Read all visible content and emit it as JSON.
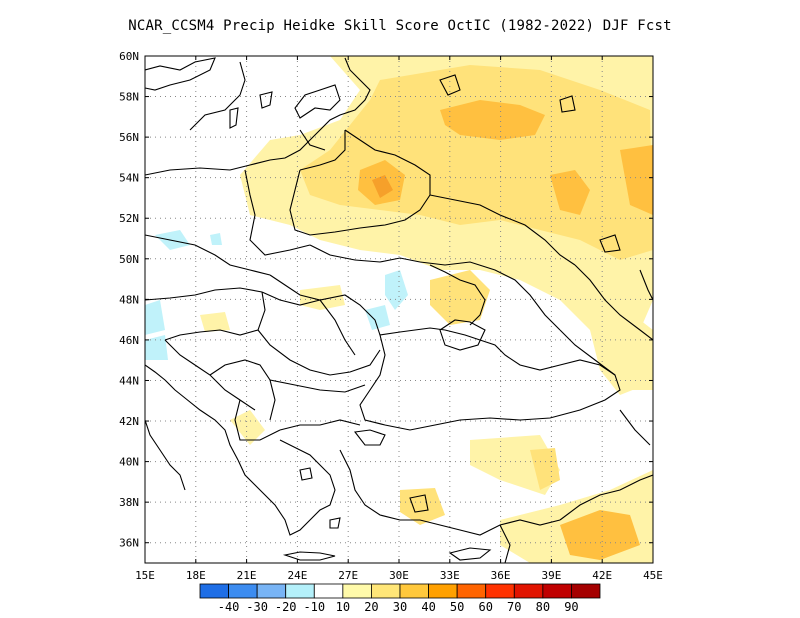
{
  "title": "NCAR_CCSM4 Precip Heidke Skill Score OctIC (1982-2022) DJF Fcst",
  "map": {
    "lon_range": [
      15,
      45
    ],
    "lat_range": [
      35,
      60
    ],
    "x_ticks": [
      "15E",
      "18E",
      "21E",
      "24E",
      "27E",
      "30E",
      "33E",
      "36E",
      "39E",
      "42E",
      "45E"
    ],
    "y_ticks": [
      "36N",
      "38N",
      "40N",
      "42N",
      "44N",
      "46N",
      "48N",
      "50N",
      "52N",
      "54N",
      "56N",
      "58N",
      "60N"
    ],
    "grid": "dotted"
  },
  "colorbar": {
    "colors": [
      "#1e6ee6",
      "#3c8cf0",
      "#78b4f5",
      "#b4f0fa",
      "#ffffff",
      "#fffaaa",
      "#ffe678",
      "#ffc83c",
      "#ffa000",
      "#ff6400",
      "#ff3200",
      "#e11400",
      "#c00000",
      "#a50000"
    ],
    "labels": [
      "-40",
      "-30",
      "-20",
      "-10",
      "10",
      "20",
      "30",
      "40",
      "50",
      "60",
      "70",
      "80",
      "90"
    ]
  },
  "legend_colors": {
    "light_yellow": "#fff3a8",
    "yellow": "#ffe27a",
    "orange": "#ffc040",
    "dark_orange": "#f6a02a",
    "light_blue": "#c0f2fa"
  }
}
